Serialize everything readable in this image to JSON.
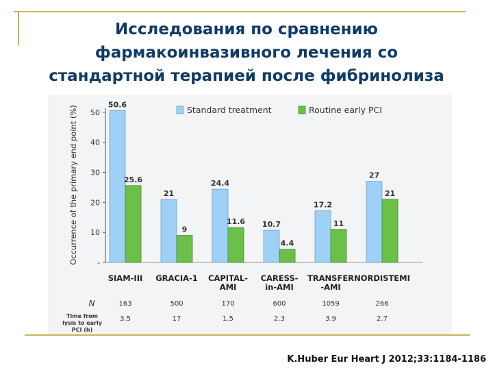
{
  "title_lines": [
    "Исследования по сравнению",
    "фармакоинвазивного лечения со",
    "стандартной терапией после фибринолиза"
  ],
  "citation": "K.Huber Eur Heart J 2012;33:1184-1186",
  "colors": {
    "title": "#0f3b66",
    "standard": "#9fd0f5",
    "routine": "#6cc04a",
    "frame": "#c9b25a"
  },
  "chart_data": {
    "type": "bar",
    "categories": [
      [
        "SIAM-III"
      ],
      [
        "GRACIA-1"
      ],
      [
        "CAPITAL-",
        "AMI"
      ],
      [
        "CARESS-",
        "in-AMI"
      ],
      [
        "TRANSFER",
        "-AMI"
      ],
      [
        "NORDISTEMI"
      ]
    ],
    "series": [
      {
        "name": "Standard treatment",
        "values": [
          50.6,
          21,
          24.4,
          10.7,
          17.2,
          27
        ],
        "labels": [
          "50.6",
          "21",
          "24.4",
          "10.7",
          "17.2",
          "27"
        ]
      },
      {
        "name": "Routine early PCI",
        "values": [
          25.6,
          9,
          11.6,
          4.4,
          11,
          21
        ],
        "labels": [
          "25.6",
          "9",
          "11.6",
          "4.4",
          "11",
          "21"
        ]
      }
    ],
    "ylabel": "Occurrence of the primary end point (%)",
    "ylim": [
      0,
      55
    ],
    "yticks": [
      "-",
      "10",
      "20",
      "30",
      "40",
      "50"
    ],
    "ytick_values": [
      0,
      10,
      20,
      30,
      40,
      50
    ],
    "legend_position": "top",
    "n_label": "N",
    "n_values": [
      "163",
      "500",
      "170",
      "600",
      "1059",
      "266"
    ],
    "time_label": [
      "Time from",
      "lysis to early",
      "PCI (h)"
    ],
    "time_values": [
      "3.5",
      "17",
      "1.5",
      "2.3",
      "3.9",
      "2.7"
    ]
  }
}
